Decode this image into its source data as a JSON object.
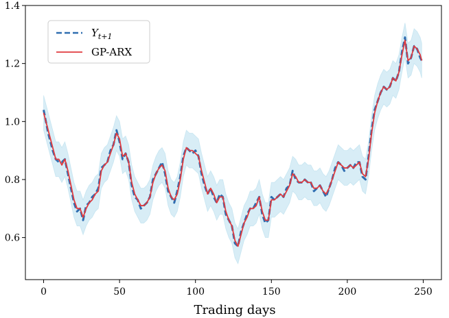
{
  "chart_data": {
    "type": "line",
    "title": "",
    "xlabel": "Trading days",
    "ylabel": "",
    "xlim": [
      -12,
      262
    ],
    "ylim": [
      0.455,
      1.4
    ],
    "xticks": [
      0,
      50,
      100,
      150,
      200,
      250
    ],
    "yticks": [
      0.6,
      0.8,
      1.0,
      1.2,
      1.4
    ],
    "xtick_labels": [
      "0",
      "50",
      "100",
      "150",
      "200",
      "250"
    ],
    "ytick_labels": [
      "0.6",
      "0.8",
      "1.0",
      "1.2",
      "1.4"
    ],
    "grid": false,
    "legend_position": "top-left",
    "band_halfwidth": 0.06,
    "series": [
      {
        "name": "Y_{t+1}",
        "legend_main": "Y",
        "legend_sub": "t+1",
        "color": "#2f6db0",
        "style": "dashed",
        "x": [
          0,
          3,
          6,
          8,
          10,
          12,
          14,
          16,
          18,
          20,
          22,
          24,
          26,
          28,
          30,
          32,
          34,
          36,
          38,
          40,
          42,
          44,
          46,
          48,
          50,
          52,
          54,
          56,
          58,
          60,
          62,
          64,
          66,
          68,
          70,
          72,
          74,
          76,
          78,
          80,
          82,
          84,
          86,
          88,
          90,
          92,
          94,
          96,
          98,
          100,
          102,
          104,
          106,
          108,
          110,
          112,
          114,
          116,
          118,
          120,
          122,
          124,
          126,
          128,
          130,
          132,
          134,
          136,
          138,
          140,
          142,
          144,
          146,
          148,
          150,
          152,
          154,
          156,
          158,
          160,
          162,
          164,
          166,
          168,
          170,
          172,
          174,
          176,
          178,
          180,
          182,
          184,
          186,
          188,
          190,
          192,
          194,
          196,
          198,
          200,
          202,
          204,
          206,
          208,
          210,
          212,
          214,
          216,
          218,
          220,
          222,
          224,
          226,
          228,
          230,
          232,
          234,
          236,
          238,
          240,
          242,
          244,
          246,
          248,
          249
        ],
        "values": [
          1.04,
          0.96,
          0.9,
          0.87,
          0.86,
          0.86,
          0.87,
          0.82,
          0.77,
          0.72,
          0.69,
          0.7,
          0.66,
          0.71,
          0.72,
          0.74,
          0.75,
          0.77,
          0.84,
          0.85,
          0.86,
          0.9,
          0.92,
          0.97,
          0.93,
          0.87,
          0.89,
          0.86,
          0.78,
          0.74,
          0.73,
          0.7,
          0.71,
          0.72,
          0.74,
          0.8,
          0.82,
          0.84,
          0.86,
          0.82,
          0.76,
          0.74,
          0.72,
          0.76,
          0.81,
          0.88,
          0.91,
          0.9,
          0.89,
          0.9,
          0.88,
          0.82,
          0.78,
          0.75,
          0.77,
          0.74,
          0.72,
          0.75,
          0.74,
          0.68,
          0.66,
          0.64,
          0.58,
          0.57,
          0.62,
          0.65,
          0.68,
          0.7,
          0.7,
          0.72,
          0.74,
          0.68,
          0.65,
          0.66,
          0.74,
          0.73,
          0.74,
          0.75,
          0.74,
          0.77,
          0.78,
          0.83,
          0.8,
          0.79,
          0.79,
          0.8,
          0.79,
          0.79,
          0.76,
          0.77,
          0.78,
          0.76,
          0.74,
          0.77,
          0.8,
          0.84,
          0.86,
          0.85,
          0.83,
          0.84,
          0.85,
          0.84,
          0.86,
          0.86,
          0.81,
          0.8,
          0.88,
          0.97,
          1.04,
          1.07,
          1.1,
          1.12,
          1.11,
          1.12,
          1.15,
          1.14,
          1.17,
          1.24,
          1.29,
          1.2,
          1.22,
          1.26,
          1.25,
          1.22,
          1.21
        ]
      },
      {
        "name": "GP-ARX",
        "color": "#e03a3e",
        "style": "solid",
        "x": [
          0,
          3,
          6,
          8,
          10,
          12,
          14,
          16,
          18,
          20,
          22,
          24,
          26,
          28,
          30,
          32,
          34,
          36,
          38,
          40,
          42,
          44,
          46,
          48,
          50,
          52,
          54,
          56,
          58,
          60,
          62,
          64,
          66,
          68,
          70,
          72,
          74,
          76,
          78,
          80,
          82,
          84,
          86,
          88,
          90,
          92,
          94,
          96,
          98,
          100,
          102,
          104,
          106,
          108,
          110,
          112,
          114,
          116,
          118,
          120,
          122,
          124,
          126,
          128,
          130,
          132,
          134,
          136,
          138,
          140,
          142,
          144,
          146,
          148,
          150,
          152,
          154,
          156,
          158,
          160,
          162,
          164,
          166,
          168,
          170,
          172,
          174,
          176,
          178,
          180,
          182,
          184,
          186,
          188,
          190,
          192,
          194,
          196,
          198,
          200,
          202,
          204,
          206,
          208,
          210,
          212,
          214,
          216,
          218,
          220,
          222,
          224,
          226,
          228,
          230,
          232,
          234,
          236,
          238,
          240,
          242,
          244,
          246,
          248,
          249
        ],
        "values": [
          1.03,
          0.97,
          0.91,
          0.87,
          0.87,
          0.85,
          0.87,
          0.83,
          0.78,
          0.73,
          0.7,
          0.7,
          0.67,
          0.7,
          0.72,
          0.73,
          0.75,
          0.76,
          0.83,
          0.85,
          0.86,
          0.89,
          0.92,
          0.96,
          0.94,
          0.88,
          0.89,
          0.86,
          0.79,
          0.75,
          0.73,
          0.71,
          0.71,
          0.72,
          0.74,
          0.79,
          0.82,
          0.84,
          0.85,
          0.83,
          0.77,
          0.74,
          0.73,
          0.75,
          0.8,
          0.87,
          0.91,
          0.9,
          0.9,
          0.89,
          0.88,
          0.83,
          0.79,
          0.75,
          0.77,
          0.75,
          0.72,
          0.74,
          0.74,
          0.69,
          0.66,
          0.64,
          0.59,
          0.57,
          0.61,
          0.65,
          0.67,
          0.7,
          0.7,
          0.71,
          0.74,
          0.69,
          0.66,
          0.66,
          0.73,
          0.73,
          0.74,
          0.75,
          0.74,
          0.76,
          0.78,
          0.82,
          0.81,
          0.79,
          0.79,
          0.8,
          0.79,
          0.79,
          0.77,
          0.77,
          0.78,
          0.76,
          0.75,
          0.77,
          0.8,
          0.83,
          0.86,
          0.85,
          0.84,
          0.84,
          0.85,
          0.84,
          0.85,
          0.86,
          0.82,
          0.81,
          0.87,
          0.96,
          1.03,
          1.07,
          1.1,
          1.12,
          1.11,
          1.12,
          1.15,
          1.14,
          1.17,
          1.23,
          1.28,
          1.21,
          1.22,
          1.26,
          1.25,
          1.23,
          1.21
        ]
      }
    ]
  }
}
